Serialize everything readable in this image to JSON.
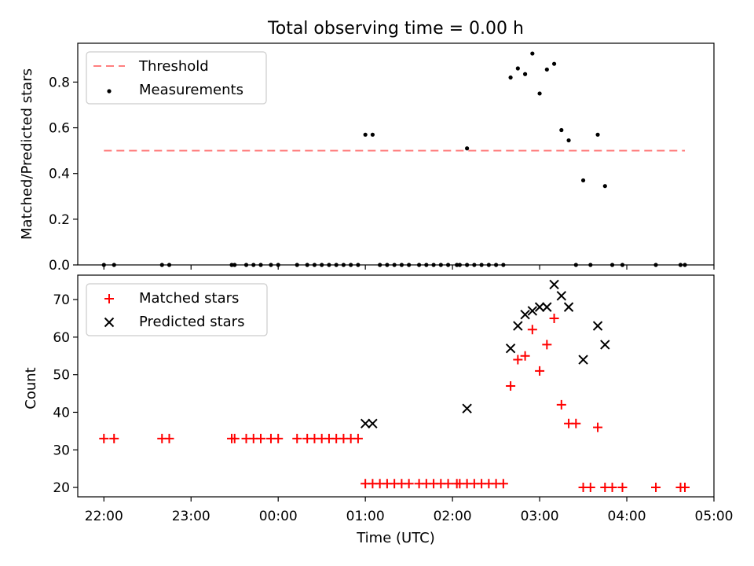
{
  "chart_data": [
    {
      "type": "scatter",
      "title": "Total observing time = 0.00 h",
      "xlabel": "",
      "ylabel": "Matched/Predicted stars",
      "xlim": [
        "21:42",
        "05:00"
      ],
      "ylim": [
        0,
        0.97
      ],
      "yticks": [
        "0.0",
        "0.2",
        "0.4",
        "0.6",
        "0.8"
      ],
      "grid": false,
      "legend_position": "top-left",
      "threshold": {
        "name": "Threshold",
        "value": 0.5,
        "x_range": [
          "22:00",
          "04:40"
        ],
        "color": "#ff7f7f"
      },
      "series": [
        {
          "name": "Measurements",
          "color": "#000000",
          "points": [
            [
              "22:00",
              0
            ],
            [
              "22:07",
              0
            ],
            [
              "22:40",
              0
            ],
            [
              "22:45",
              0
            ],
            [
              "23:28",
              0
            ],
            [
              "23:30",
              0
            ],
            [
              "23:38",
              0
            ],
            [
              "23:43",
              0
            ],
            [
              "23:48",
              0
            ],
            [
              "23:55",
              0
            ],
            [
              "00:00",
              0
            ],
            [
              "00:13",
              0
            ],
            [
              "00:20",
              0
            ],
            [
              "00:25",
              0
            ],
            [
              "00:30",
              0
            ],
            [
              "00:35",
              0
            ],
            [
              "00:40",
              0
            ],
            [
              "00:45",
              0
            ],
            [
              "00:50",
              0
            ],
            [
              "00:55",
              0
            ],
            [
              "01:00",
              0.57
            ],
            [
              "01:05",
              0.57
            ],
            [
              "01:10",
              0
            ],
            [
              "01:15",
              0
            ],
            [
              "01:20",
              0
            ],
            [
              "01:25",
              0
            ],
            [
              "01:30",
              0
            ],
            [
              "01:37",
              0
            ],
            [
              "01:42",
              0
            ],
            [
              "01:47",
              0
            ],
            [
              "01:52",
              0
            ],
            [
              "01:57",
              0
            ],
            [
              "02:03",
              0
            ],
            [
              "02:05",
              0
            ],
            [
              "02:10",
              0
            ],
            [
              "02:15",
              0
            ],
            [
              "02:20",
              0
            ],
            [
              "02:25",
              0
            ],
            [
              "02:30",
              0
            ],
            [
              "02:35",
              0
            ],
            [
              "02:10",
              0.51
            ],
            [
              "02:40",
              0.82
            ],
            [
              "02:45",
              0.86
            ],
            [
              "02:50",
              0.835
            ],
            [
              "02:55",
              0.925
            ],
            [
              "03:00",
              0.75
            ],
            [
              "03:05",
              0.855
            ],
            [
              "03:10",
              0.88
            ],
            [
              "03:15",
              0.59
            ],
            [
              "03:20",
              0.545
            ],
            [
              "03:25",
              0
            ],
            [
              "03:30",
              0.37
            ],
            [
              "03:35",
              0
            ],
            [
              "03:40",
              0.57
            ],
            [
              "03:45",
              0.345
            ],
            [
              "03:50",
              0
            ],
            [
              "03:57",
              0
            ],
            [
              "04:20",
              0
            ],
            [
              "04:37",
              0
            ],
            [
              "04:40",
              0
            ]
          ]
        }
      ]
    },
    {
      "type": "scatter",
      "title": "",
      "xlabel": "Time (UTC)",
      "ylabel": "Count",
      "xlim": [
        "21:42",
        "05:00"
      ],
      "ylim": [
        17.5,
        76.5
      ],
      "yticks": [
        "20",
        "30",
        "40",
        "50",
        "60",
        "70"
      ],
      "xticks": [
        "22:00",
        "23:00",
        "00:00",
        "01:00",
        "02:00",
        "03:00",
        "04:00",
        "05:00"
      ],
      "grid": false,
      "legend_position": "top-left",
      "series": [
        {
          "name": "Matched stars",
          "marker": "+",
          "color": "#ff0000",
          "points": [
            [
              "22:00",
              33
            ],
            [
              "22:07",
              33
            ],
            [
              "22:40",
              33
            ],
            [
              "22:45",
              33
            ],
            [
              "23:28",
              33
            ],
            [
              "23:30",
              33
            ],
            [
              "23:38",
              33
            ],
            [
              "23:43",
              33
            ],
            [
              "23:48",
              33
            ],
            [
              "23:55",
              33
            ],
            [
              "00:00",
              33
            ],
            [
              "00:13",
              33
            ],
            [
              "00:20",
              33
            ],
            [
              "00:25",
              33
            ],
            [
              "00:30",
              33
            ],
            [
              "00:35",
              33
            ],
            [
              "00:40",
              33
            ],
            [
              "00:45",
              33
            ],
            [
              "00:50",
              33
            ],
            [
              "00:55",
              33
            ],
            [
              "01:00",
              21
            ],
            [
              "01:05",
              21
            ],
            [
              "01:10",
              21
            ],
            [
              "01:15",
              21
            ],
            [
              "01:20",
              21
            ],
            [
              "01:25",
              21
            ],
            [
              "01:30",
              21
            ],
            [
              "01:37",
              21
            ],
            [
              "01:42",
              21
            ],
            [
              "01:47",
              21
            ],
            [
              "01:52",
              21
            ],
            [
              "01:57",
              21
            ],
            [
              "02:03",
              21
            ],
            [
              "02:05",
              21
            ],
            [
              "02:10",
              21
            ],
            [
              "02:15",
              21
            ],
            [
              "02:20",
              21
            ],
            [
              "02:25",
              21
            ],
            [
              "02:30",
              21
            ],
            [
              "02:35",
              21
            ],
            [
              "02:40",
              47
            ],
            [
              "02:45",
              54
            ],
            [
              "02:50",
              55
            ],
            [
              "02:55",
              62
            ],
            [
              "03:00",
              51
            ],
            [
              "03:05",
              58
            ],
            [
              "03:10",
              65
            ],
            [
              "03:15",
              42
            ],
            [
              "03:20",
              37
            ],
            [
              "03:25",
              37
            ],
            [
              "03:30",
              20
            ],
            [
              "03:35",
              20
            ],
            [
              "03:40",
              36
            ],
            [
              "03:45",
              20
            ],
            [
              "03:50",
              20
            ],
            [
              "03:57",
              20
            ],
            [
              "04:20",
              20
            ],
            [
              "04:37",
              20
            ],
            [
              "04:40",
              20
            ]
          ]
        },
        {
          "name": "Predicted stars",
          "marker": "x",
          "color": "#000000",
          "points": [
            [
              "01:00",
              37
            ],
            [
              "01:05",
              37
            ],
            [
              "02:10",
              41
            ],
            [
              "02:40",
              57
            ],
            [
              "02:45",
              63
            ],
            [
              "02:50",
              66
            ],
            [
              "02:55",
              67
            ],
            [
              "03:00",
              68
            ],
            [
              "03:05",
              68
            ],
            [
              "03:10",
              74
            ],
            [
              "03:15",
              71
            ],
            [
              "03:20",
              68
            ],
            [
              "03:30",
              54
            ],
            [
              "03:40",
              63
            ],
            [
              "03:45",
              58
            ]
          ]
        }
      ]
    }
  ]
}
